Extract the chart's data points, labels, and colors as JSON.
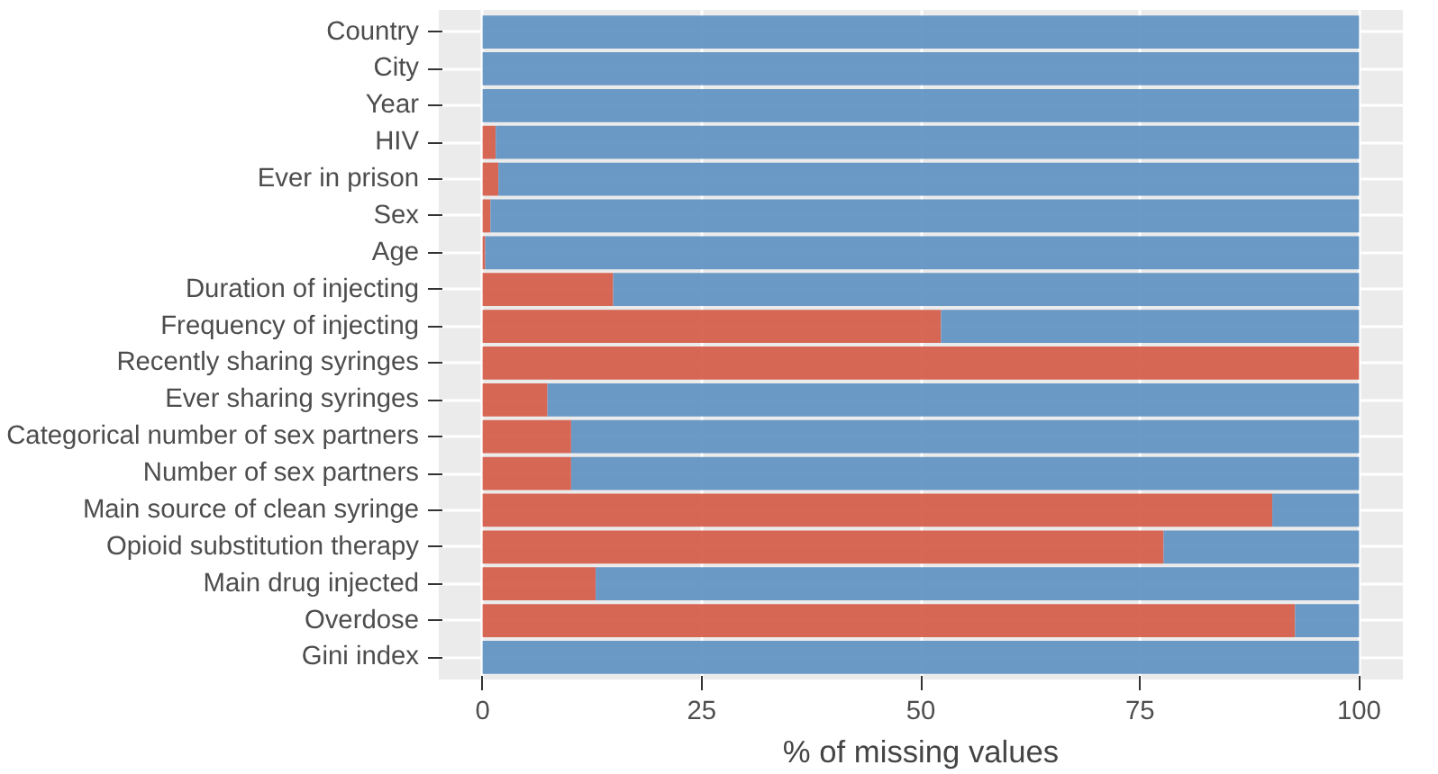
{
  "chart_data": {
    "type": "bar",
    "orientation": "horizontal",
    "stacked": true,
    "xlabel": "% of missing values",
    "categories": [
      "Country",
      "City",
      "Year",
      "HIV",
      "Ever in prison",
      "Sex",
      "Age",
      "Duration of injecting",
      "Frequency of injecting",
      "Recently sharing syringes",
      "Ever sharing syringes",
      "Categorical number of sex partners",
      "Number of sex partners",
      "Main source of clean syringe",
      "Opioid substitution therapy",
      "Main drug injected",
      "Overdose",
      "Gini index"
    ],
    "series": [
      {
        "color": "#d6604d",
        "values": [
          0,
          0,
          0,
          1.5,
          1.8,
          0.9,
          0.3,
          14.9,
          52.3,
          100,
          7.4,
          10.1,
          10.1,
          90.1,
          77.7,
          12.9,
          92.7,
          0
        ]
      },
      {
        "color": "#6495c3",
        "values": [
          100,
          100,
          100,
          98.5,
          98.2,
          99.1,
          99.7,
          85.1,
          47.7,
          0,
          92.6,
          89.9,
          89.9,
          9.9,
          22.3,
          87.1,
          7.3,
          100
        ]
      }
    ],
    "xlim": [
      -5,
      105
    ],
    "xticks": [
      0,
      25,
      50,
      75,
      100
    ],
    "grid": true
  }
}
